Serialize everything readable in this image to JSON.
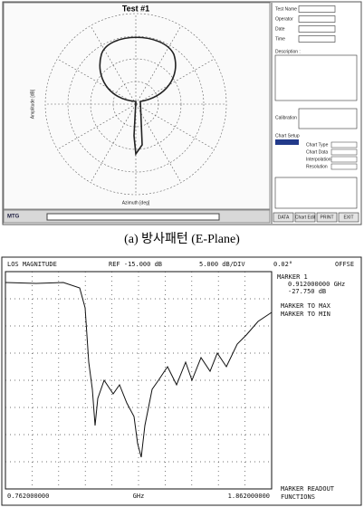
{
  "top_panel": {
    "plot_title": "Test #1",
    "x_axis_label": "Azimuth [deg]",
    "y_axis_label": "Amplitude [dB]",
    "fields": [
      "Test Name",
      "Operator",
      "Date",
      "Time"
    ],
    "description_label": "Description :",
    "calibration_label": "Calibration",
    "chart_setup": {
      "title": "Chart Setup",
      "rows": [
        "Chart Type",
        "Chart Data",
        "Interpolation",
        "Resolution"
      ]
    },
    "buttons": [
      "DATA",
      "Chart Edit",
      "PRINT",
      "EXIT"
    ],
    "logo": "MTG"
  },
  "caption_a": "(a) 방사패턴 (E-Plane)",
  "bottom_panel": {
    "header": [
      "LOS MAGNITUDE",
      "REF -15.000 dB",
      "5.000 dB/DIV",
      "0.02°",
      "OFFSE"
    ],
    "marker_lines": [
      "MARKER 1",
      "0.912000000 GHz",
      "-27.750 dB"
    ],
    "menu": [
      "MARKER TO MAX",
      "MARKER TO MIN"
    ],
    "footer_menu": [
      "MARKER READOUT",
      "FUNCTIONS"
    ],
    "x_start": "0.762000000",
    "x_unit": "GHz",
    "x_stop": "1.862000000"
  }
}
